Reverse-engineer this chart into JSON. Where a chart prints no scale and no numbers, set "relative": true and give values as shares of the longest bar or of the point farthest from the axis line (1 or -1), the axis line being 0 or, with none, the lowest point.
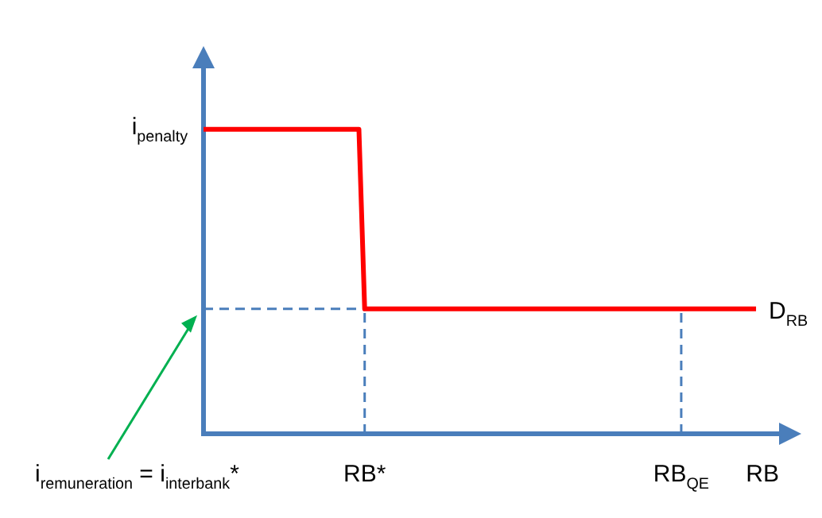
{
  "chart_data": {
    "type": "line",
    "relative": true,
    "xlabel": "RB",
    "categories": [
      null,
      null,
      null,
      null,
      null,
      null,
      null,
      null,
      null,
      null,
      null,
      null,
      null,
      null,
      null,
      null,
      null,
      null,
      null,
      null,
      null,
      null,
      null,
      null,
      null,
      null,
      null,
      null,
      "RB*",
      null,
      null,
      null,
      null,
      null,
      null,
      null,
      null,
      null,
      null,
      null,
      null,
      null,
      null,
      null,
      null,
      null,
      null,
      null,
      null,
      null,
      null,
      null,
      null,
      null,
      null,
      null,
      null,
      null,
      null,
      null,
      null,
      null,
      null,
      null,
      null,
      null,
      null,
      null,
      null,
      null,
      null,
      null,
      null,
      null,
      null,
      null,
      null,
      null,
      null,
      null,
      null,
      null,
      null,
      "RB$_{QE}$",
      null,
      null,
      null,
      null,
      null,
      null,
      null,
      null,
      null,
      null,
      null,
      null,
      null,
      null,
      null,
      null,
      null
    ],
    "series": [
      {
        "name": "D$_{RB}$",
        "color": "#ff0000",
        "values": [
          1,
          1,
          1,
          1,
          1,
          1,
          1,
          1,
          1,
          1,
          1,
          1,
          1,
          1,
          1,
          1,
          1,
          1,
          1,
          1,
          1,
          1,
          1,
          1,
          1,
          1,
          1,
          1,
          0.41,
          0.41,
          0.41,
          0.41,
          0.41,
          0.41,
          0.41,
          0.41,
          0.41,
          0.41,
          0.41,
          0.41,
          0.41,
          0.41,
          0.41,
          0.41,
          0.41,
          0.41,
          0.41,
          0.41,
          0.41,
          0.41,
          0.41,
          0.41,
          0.41,
          0.41,
          0.41,
          0.41,
          0.41,
          0.41,
          0.41,
          0.41,
          0.41,
          0.41,
          0.41,
          0.41,
          0.41,
          0.41,
          0.41,
          0.41,
          0.41,
          0.41,
          0.41,
          0.41,
          0.41,
          0.41,
          0.41,
          0.41,
          0.41,
          0.41,
          0.41,
          0.41,
          0.41,
          0.41,
          0.41,
          0.41,
          0.41,
          0.41,
          0.41,
          0.41,
          0.41,
          0.41,
          0.41,
          0.41,
          0.41,
          0.41,
          0.41,
          0.41,
          0.41,
          null,
          null,
          null,
          null
        ]
      },
      {
        "color": "#4a7ebb",
        "line_style": "dashed",
        "values": [
          0.41,
          0.41,
          0.41,
          0.41,
          0.41,
          0.41,
          0.41,
          0.41,
          0.41,
          0.41,
          0.41,
          0.41,
          0.41,
          0.41,
          0.41,
          0.41,
          0.41,
          0.41,
          0.41,
          0.41,
          0.41,
          0.41,
          0.41,
          0.41,
          0.41,
          0.41,
          0.41,
          0.41,
          0.41,
          null,
          null,
          null,
          null,
          null,
          null,
          null,
          null,
          null,
          null,
          null,
          null,
          null,
          null,
          null,
          null,
          null,
          null,
          null,
          null,
          null,
          null,
          null,
          null,
          null,
          null,
          null,
          null,
          null,
          null,
          null,
          null,
          null,
          null,
          null,
          null,
          null,
          null,
          null,
          null,
          null,
          null,
          null,
          null,
          null,
          null,
          null,
          null,
          null,
          null,
          null,
          null,
          null,
          null,
          null,
          null,
          null,
          null,
          null,
          null,
          null,
          null,
          null,
          null,
          null,
          null,
          null,
          null,
          null,
          null,
          null,
          null
        ]
      },
      {
        "color": "#4a7ebb",
        "line_style": "dashed",
        "x": [
          "RB*",
          "RB*"
        ],
        "values": [
          0,
          0.41
        ]
      },
      {
        "color": "#4a7ebb",
        "line_style": "dashed",
        "x": [
          "RB$_{QE}$",
          "RB$_{QE}$"
        ],
        "values": [
          0,
          0.41
        ]
      }
    ],
    "annotations": [
      "i$_{penalty}$",
      "i$_{remuneration}$ = i$_{interbank}$*"
    ],
    "marker": "none",
    "grid": false,
    "legend": false
  }
}
